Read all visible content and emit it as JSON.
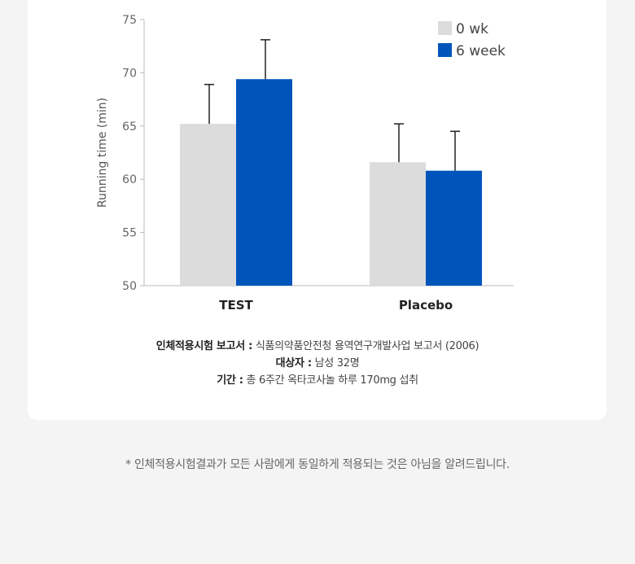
{
  "chart_data": {
    "type": "bar",
    "categories": [
      "TEST",
      "Placebo"
    ],
    "series": [
      {
        "name": "0 wk",
        "color": "#dcdcdc",
        "values": [
          65.2,
          61.6
        ],
        "error": [
          3.7,
          3.6
        ]
      },
      {
        "name": "6 week",
        "color": "#0055bb",
        "values": [
          69.4,
          60.8
        ],
        "error": [
          3.7,
          3.7
        ]
      }
    ],
    "ylabel": "Running time (min)",
    "xlabel": "",
    "ylim": [
      50,
      75
    ],
    "yticks": [
      50,
      55,
      60,
      65,
      70,
      75
    ],
    "legend": "top-right",
    "grid": false
  },
  "source": {
    "report_label": "인체적용시험 보고서 :",
    "report_value": "식품의약품안전청 용역연구개발사업 보고서 (2006)",
    "subject_label": "대상자 :",
    "subject_value": "남성 32명",
    "period_label": "기간 :",
    "period_value": "총 6주간 옥타코사놀 하루 170mg 섭취"
  },
  "notice": "* 인체적용시험결과가 모든 사람에게 동일하게 적용되는 것은 아님을 알려드립니다."
}
